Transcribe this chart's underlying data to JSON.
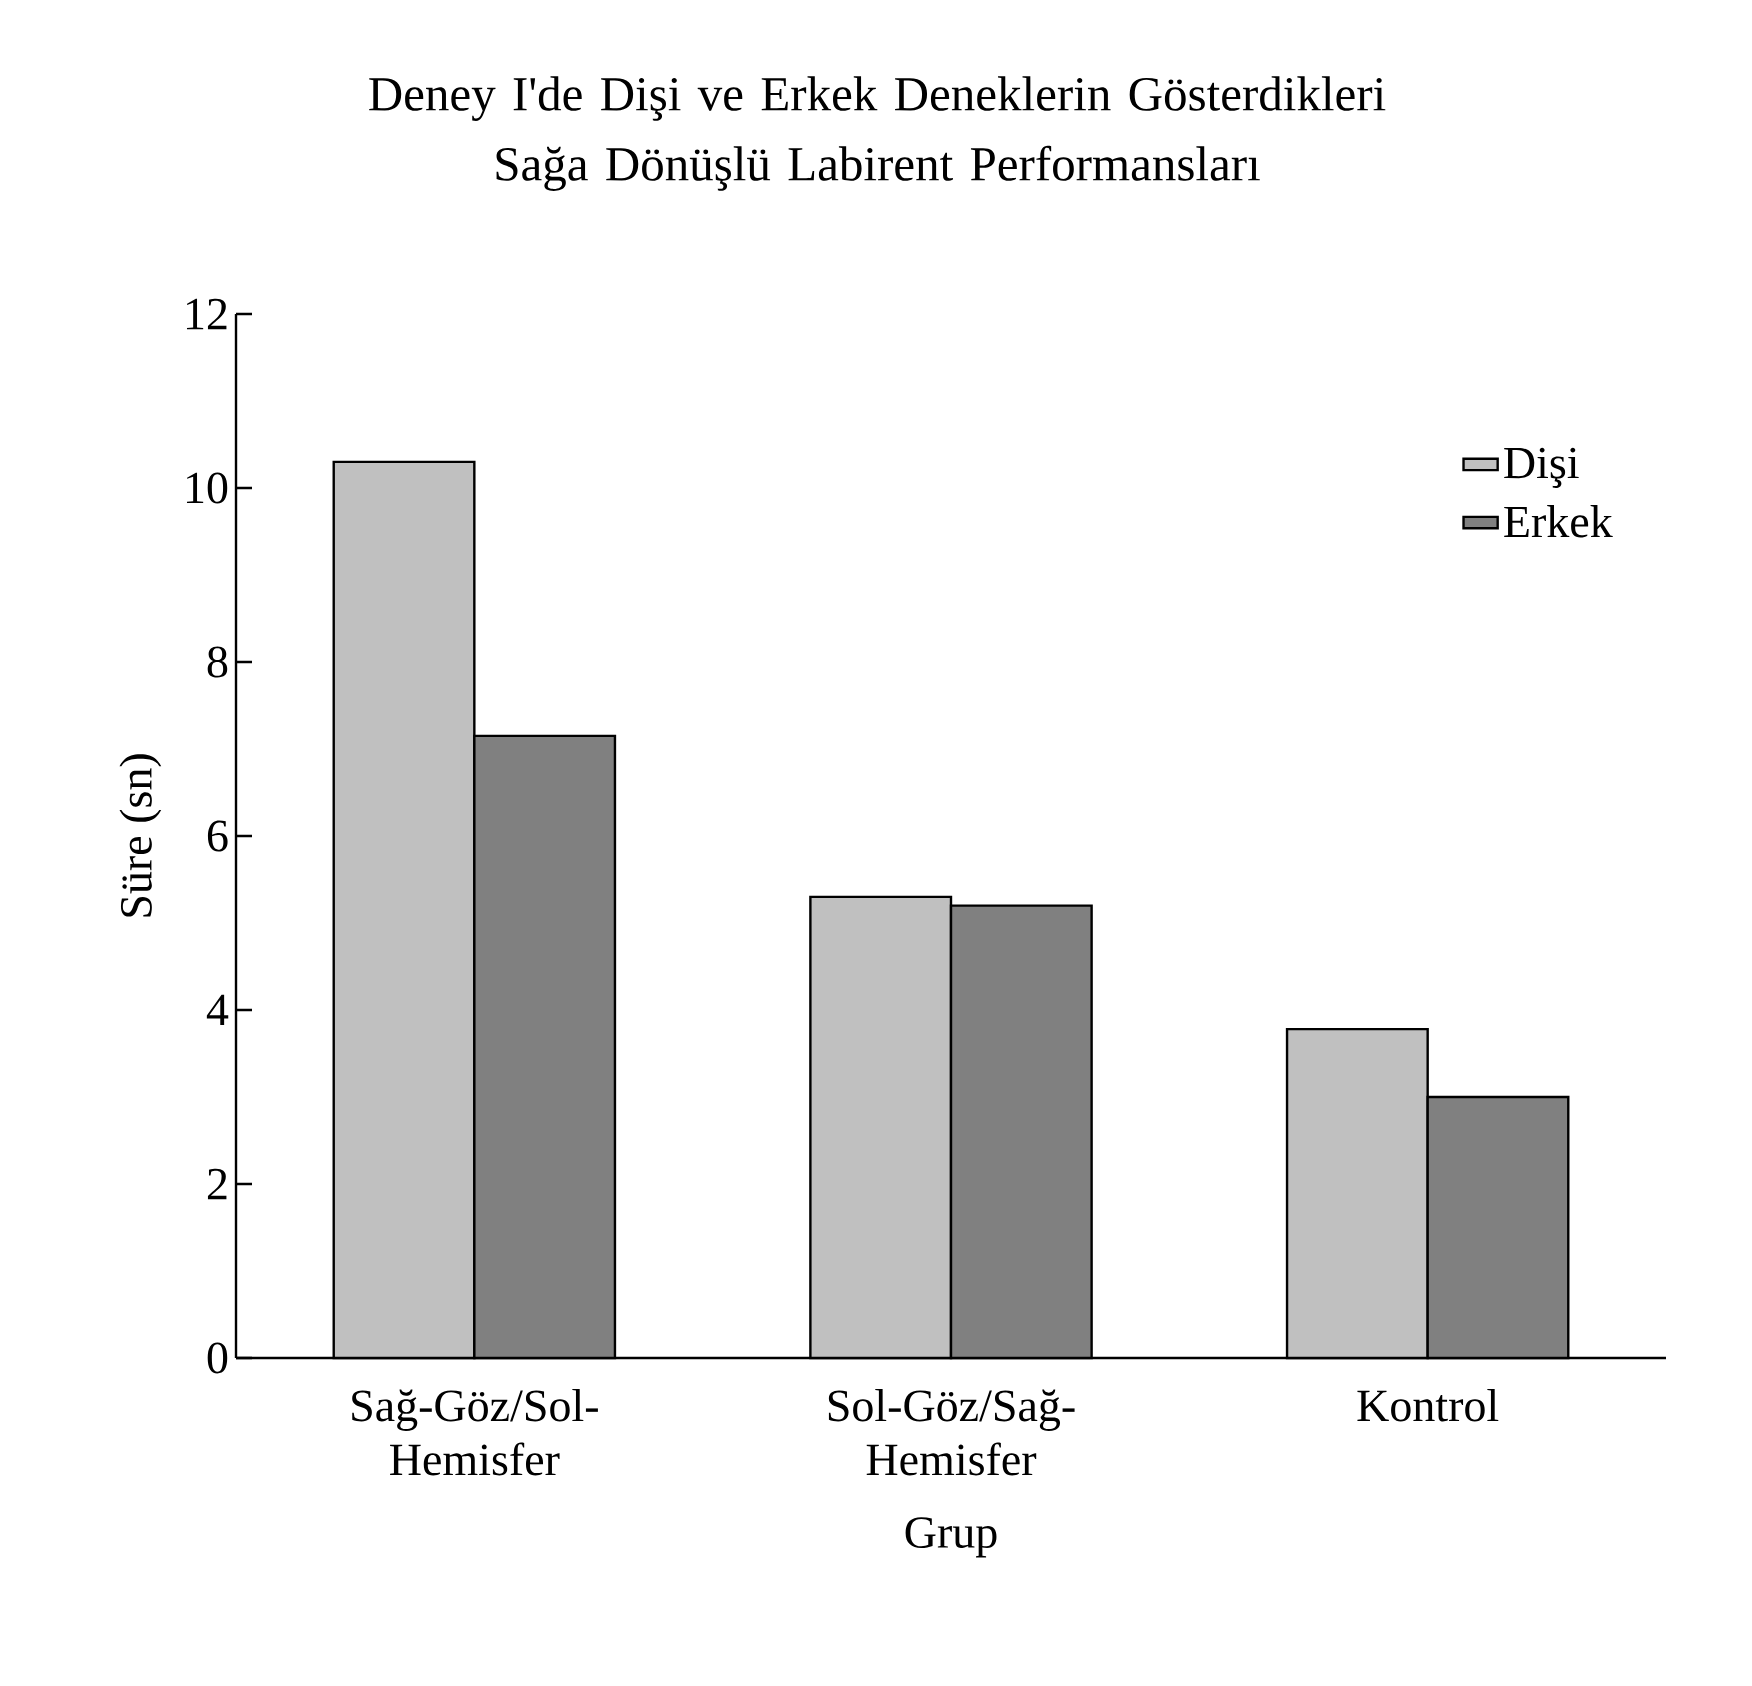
{
  "chart_data": {
    "type": "bar",
    "title": "Deney I'de Dişi ve Erkek Deneklerin Gösterdikleri Sağa Dönüşlü Labirent Performansları",
    "xlabel": "Grup",
    "ylabel": "Süre (sn)",
    "categories": [
      "Sağ-Göz/Sol-Hemisfer",
      "Sol-Göz/Sağ-Hemisfer",
      "Kontrol"
    ],
    "series": [
      {
        "name": "Dişi",
        "color": "#c0c0c0",
        "values": [
          10.3,
          5.3,
          3.78
        ]
      },
      {
        "name": "Erkek",
        "color": "#808080",
        "values": [
          7.15,
          5.2,
          3.0
        ]
      }
    ],
    "ylim": [
      0,
      12
    ],
    "yticks": [
      0,
      2,
      4,
      6,
      8,
      10,
      12
    ],
    "legend": "top right",
    "grid": false
  }
}
